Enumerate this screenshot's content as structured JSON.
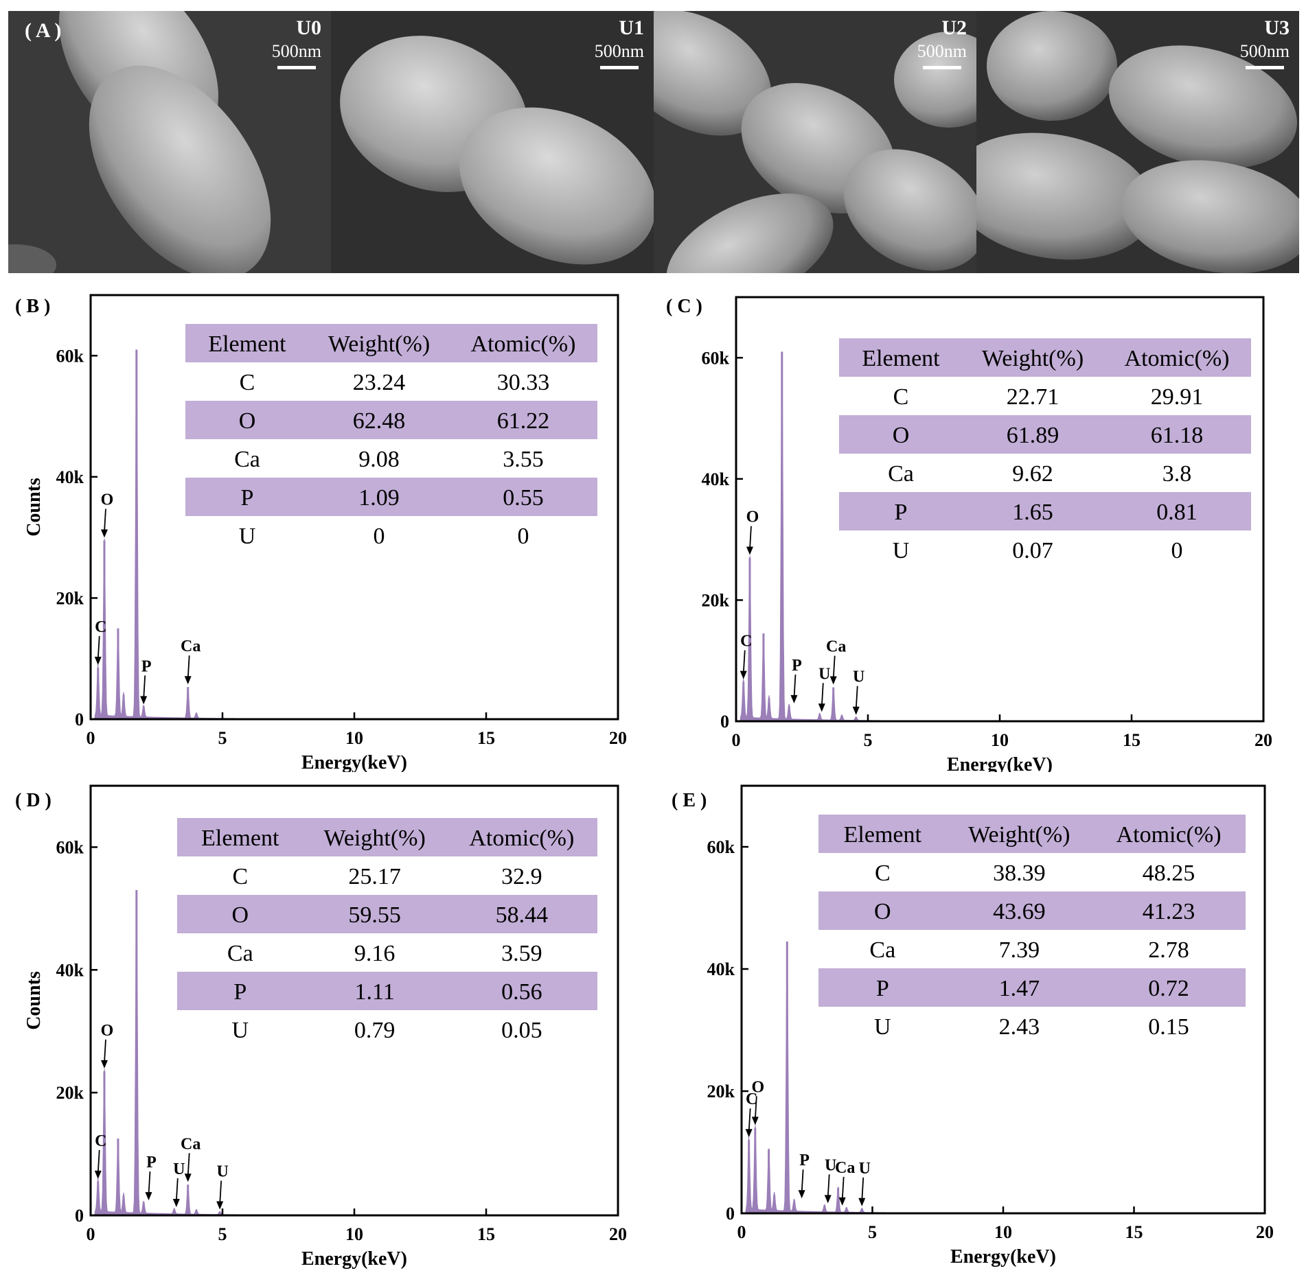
{
  "panel_a": {
    "letter": "( A )",
    "images": [
      {
        "label": "U0",
        "scale": "500nm"
      },
      {
        "label": "U1",
        "scale": "500nm"
      },
      {
        "label": "U2",
        "scale": "500nm"
      },
      {
        "label": "U3",
        "scale": "500nm"
      }
    ]
  },
  "colors": {
    "spectrum": "#9b7fb8",
    "table_band": "#c2aed6",
    "frame": "#000000"
  },
  "chart_data": [
    {
      "id": "B",
      "letter": "( B )",
      "type": "area",
      "xlabel": "Energy(keV)",
      "ylabel": "Counts",
      "xlim": [
        0,
        20
      ],
      "ylim": [
        0,
        70000
      ],
      "xticks": [
        "0",
        "5",
        "10",
        "15",
        "20"
      ],
      "yticks": [
        "0",
        "20k",
        "40k",
        "60k"
      ],
      "peaks": [
        [
          0.28,
          8500
        ],
        [
          0.52,
          29500
        ],
        [
          1.04,
          15000
        ],
        [
          1.25,
          4000
        ],
        [
          1.74,
          61000
        ],
        [
          2.01,
          2000
        ],
        [
          3.69,
          5300
        ],
        [
          4.01,
          900
        ]
      ],
      "annotations": [
        {
          "label": "C",
          "x": 0.28
        },
        {
          "label": "O",
          "x": 0.52
        },
        {
          "label": "P",
          "x": 2.01
        },
        {
          "label": "Ca",
          "x": 3.69
        }
      ],
      "table": {
        "columns": [
          "Element",
          "Weight(%)",
          "Atomic(%)"
        ],
        "rows": [
          [
            "C",
            "23.24",
            "30.33"
          ],
          [
            "O",
            "62.48",
            "61.22"
          ],
          [
            "Ca",
            "9.08",
            "3.55"
          ],
          [
            "P",
            "1.09",
            "0.55"
          ],
          [
            "U",
            "0",
            "0"
          ]
        ]
      }
    },
    {
      "id": "C",
      "letter": "( C )",
      "type": "area",
      "xlabel": "Energy(keV)",
      "ylabel": "",
      "xlim": [
        0,
        20
      ],
      "ylim": [
        0,
        70000
      ],
      "xticks": [
        "0",
        "5",
        "10",
        "15",
        "20"
      ],
      "yticks": [
        "0",
        "20k",
        "40k",
        "60k"
      ],
      "peaks": [
        [
          0.28,
          6500
        ],
        [
          0.52,
          27000
        ],
        [
          1.04,
          14500
        ],
        [
          1.25,
          3800
        ],
        [
          1.74,
          61000
        ],
        [
          2.01,
          2500
        ],
        [
          3.17,
          1100
        ],
        [
          3.69,
          5600
        ],
        [
          4.01,
          900
        ],
        [
          4.55,
          600
        ]
      ],
      "annotations": [
        {
          "label": "C",
          "x": 0.28
        },
        {
          "label": "O",
          "x": 0.52
        },
        {
          "label": "P",
          "x": 2.2
        },
        {
          "label": "U",
          "x": 3.25
        },
        {
          "label": "Ca",
          "x": 3.69
        },
        {
          "label": "U",
          "x": 4.55
        }
      ],
      "table": {
        "columns": [
          "Element",
          "Weight(%)",
          "Atomic(%)"
        ],
        "rows": [
          [
            "C",
            "22.71",
            "29.91"
          ],
          [
            "O",
            "61.89",
            "61.18"
          ],
          [
            "Ca",
            "9.62",
            "3.8"
          ],
          [
            "P",
            "1.65",
            "0.81"
          ],
          [
            "U",
            "0.07",
            "0"
          ]
        ]
      }
    },
    {
      "id": "D",
      "letter": "( D )",
      "type": "area",
      "xlabel": "Energy(keV)",
      "ylabel": "Counts",
      "xlim": [
        0,
        20
      ],
      "ylim": [
        0,
        70000
      ],
      "xticks": [
        "0",
        "5",
        "10",
        "15",
        "20"
      ],
      "yticks": [
        "0",
        "20k",
        "40k",
        "60k"
      ],
      "peaks": [
        [
          0.28,
          5500
        ],
        [
          0.52,
          23500
        ],
        [
          1.04,
          12500
        ],
        [
          1.25,
          3200
        ],
        [
          1.74,
          53000
        ],
        [
          2.01,
          2000
        ],
        [
          3.17,
          900
        ],
        [
          3.69,
          5000
        ],
        [
          4.01,
          800
        ],
        [
          4.9,
          500
        ]
      ],
      "annotations": [
        {
          "label": "C",
          "x": 0.28
        },
        {
          "label": "O",
          "x": 0.52
        },
        {
          "label": "P",
          "x": 2.2
        },
        {
          "label": "U",
          "x": 3.25
        },
        {
          "label": "Ca",
          "x": 3.69
        },
        {
          "label": "U",
          "x": 4.9
        }
      ],
      "table": {
        "columns": [
          "Element",
          "Weight(%)",
          "Atomic(%)"
        ],
        "rows": [
          [
            "C",
            "25.17",
            "32.9"
          ],
          [
            "O",
            "59.55",
            "58.44"
          ],
          [
            "Ca",
            "9.16",
            "3.59"
          ],
          [
            "P",
            "1.11",
            "0.56"
          ],
          [
            "U",
            "0.79",
            "0.05"
          ]
        ]
      }
    },
    {
      "id": "E",
      "letter": "( E )",
      "type": "area",
      "xlabel": "Energy(keV)",
      "ylabel": "",
      "xlim": [
        0,
        20
      ],
      "ylim": [
        0,
        70000
      ],
      "xticks": [
        "0",
        "5",
        "10",
        "15",
        "20"
      ],
      "yticks": [
        "0",
        "20k",
        "40k",
        "60k"
      ],
      "peaks": [
        [
          0.28,
          12000
        ],
        [
          0.52,
          14000
        ],
        [
          1.04,
          10500
        ],
        [
          1.25,
          3000
        ],
        [
          1.74,
          44500
        ],
        [
          2.01,
          2000
        ],
        [
          3.17,
          1200
        ],
        [
          3.69,
          4200
        ],
        [
          4.01,
          800
        ],
        [
          4.6,
          700
        ]
      ],
      "annotations": [
        {
          "label": "C",
          "x": 0.28
        },
        {
          "label": "O",
          "x": 0.52
        },
        {
          "label": "P",
          "x": 2.3
        },
        {
          "label": "U",
          "x": 3.3
        },
        {
          "label": "Ca",
          "x": 3.85
        },
        {
          "label": "U",
          "x": 4.6
        }
      ],
      "table": {
        "columns": [
          "Element",
          "Weight(%)",
          "Atomic(%)"
        ],
        "rows": [
          [
            "C",
            "38.39",
            "48.25"
          ],
          [
            "O",
            "43.69",
            "41.23"
          ],
          [
            "Ca",
            "7.39",
            "2.78"
          ],
          [
            "P",
            "1.47",
            "0.72"
          ],
          [
            "U",
            "2.43",
            "0.15"
          ]
        ]
      }
    }
  ]
}
